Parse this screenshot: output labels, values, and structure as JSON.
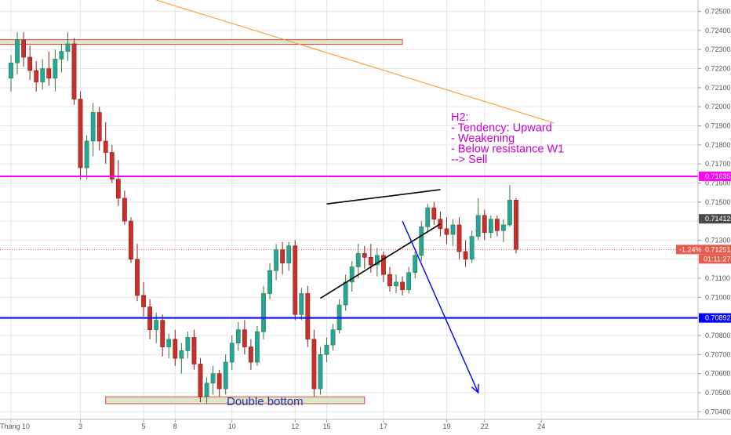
{
  "chart_data": {
    "type": "candlestick",
    "title": "",
    "ylim": [
      0.7036,
      0.7256
    ],
    "x_range": [
      0,
      86
    ],
    "price_ticks": [
      "0.72500",
      "0.72400",
      "0.72300",
      "0.72200",
      "0.72100",
      "0.72000",
      "0.71900",
      "0.71800",
      "0.71700",
      "0.71600",
      "0.71500",
      "0.71400",
      "0.71300",
      "0.71200",
      "0.71100",
      "0.71000",
      "0.70900",
      "0.70800",
      "0.70700",
      "0.70600",
      "0.70500",
      "0.70400"
    ],
    "date_ticks": [
      {
        "label": "Tháng 10",
        "i": 0
      },
      {
        "label": "3",
        "i": 11
      },
      {
        "label": "5",
        "i": 21
      },
      {
        "label": "8",
        "i": 26
      },
      {
        "label": "10",
        "i": 35
      },
      {
        "label": "12",
        "i": 45
      },
      {
        "label": "15",
        "i": 50
      },
      {
        "label": "17",
        "i": 59
      },
      {
        "label": "19",
        "i": 69
      },
      {
        "label": "22",
        "i": 75
      },
      {
        "label": "24",
        "i": 84
      }
    ],
    "levels": [
      {
        "name": "resistance",
        "price": 0.71635,
        "label": "0.71635",
        "color": "#ff00ff"
      },
      {
        "name": "support",
        "price": 0.70892,
        "label": "0.70892",
        "color": "#0000ff"
      }
    ],
    "current_price": {
      "value": 0.71251,
      "label": "0.71251",
      "change": "-1.24%",
      "countdown": "01:11:27",
      "color": "#e55b4d"
    },
    "high_marker": {
      "value": 0.71412,
      "label": "0.71412"
    },
    "zones": [
      {
        "name": "resistance-zone",
        "i0": -2,
        "i1": 62,
        "p_low": 0.72328,
        "p_high": 0.72352
      },
      {
        "name": "support-zone",
        "i0": 15,
        "i1": 56,
        "p_low": 0.70442,
        "p_high": 0.70478
      }
    ],
    "trendlines": [
      {
        "name": "orange-trendline",
        "i0": 23,
        "p0": 0.7256,
        "i1": 86,
        "p1": 0.71915,
        "color": "#ff9a2e"
      },
      {
        "name": "wedge-upper-line",
        "i0": 50,
        "p0": 0.7149,
        "i1": 68,
        "p1": 0.71565,
        "color": "#000000"
      },
      {
        "name": "wedge-lower-line",
        "i0": 49,
        "p0": 0.70995,
        "i1": 68,
        "p1": 0.71385,
        "color": "#000000"
      }
    ],
    "forecast_arrow": {
      "i0": 62,
      "p0": 0.714,
      "i1": 74,
      "p1": 0.705,
      "color": "#0000ff"
    },
    "annotation": {
      "lines": [
        "H2:",
        "- Tendency: Upward",
        "- Weakening",
        "- Below resistance W1",
        "--> Sell"
      ],
      "color": "#cc00cc"
    },
    "zone_label": "Double bottom",
    "colors": {
      "up": "#26a69a",
      "down": "#c9302c",
      "up_wick": "#2f7a3c",
      "down_wick": "#8a1d1b",
      "grid": "#e6e6e6"
    },
    "candles": [
      {
        "i": 0,
        "o": 0.7215,
        "h": 0.7227,
        "l": 0.7208,
        "c": 0.7223
      },
      {
        "i": 1,
        "o": 0.7223,
        "h": 0.7239,
        "l": 0.7217,
        "c": 0.7235
      },
      {
        "i": 2,
        "o": 0.7235,
        "h": 0.7239,
        "l": 0.7221,
        "c": 0.7226
      },
      {
        "i": 3,
        "o": 0.7226,
        "h": 0.7232,
        "l": 0.7214,
        "c": 0.7219
      },
      {
        "i": 4,
        "o": 0.7219,
        "h": 0.7224,
        "l": 0.7208,
        "c": 0.7213
      },
      {
        "i": 5,
        "o": 0.7213,
        "h": 0.7225,
        "l": 0.7209,
        "c": 0.722
      },
      {
        "i": 6,
        "o": 0.722,
        "h": 0.7229,
        "l": 0.7211,
        "c": 0.7215
      },
      {
        "i": 7,
        "o": 0.7215,
        "h": 0.723,
        "l": 0.7208,
        "c": 0.7225
      },
      {
        "i": 8,
        "o": 0.7225,
        "h": 0.7233,
        "l": 0.7218,
        "c": 0.7229
      },
      {
        "i": 9,
        "o": 0.7229,
        "h": 0.7239,
        "l": 0.7224,
        "c": 0.7233
      },
      {
        "i": 10,
        "o": 0.7233,
        "h": 0.7236,
        "l": 0.7201,
        "c": 0.7204
      },
      {
        "i": 11,
        "o": 0.7204,
        "h": 0.7208,
        "l": 0.7162,
        "c": 0.7168
      },
      {
        "i": 12,
        "o": 0.7168,
        "h": 0.7185,
        "l": 0.7162,
        "c": 0.7182
      },
      {
        "i": 13,
        "o": 0.7182,
        "h": 0.7202,
        "l": 0.7174,
        "c": 0.7197
      },
      {
        "i": 14,
        "o": 0.7197,
        "h": 0.72,
        "l": 0.7177,
        "c": 0.7182
      },
      {
        "i": 15,
        "o": 0.7182,
        "h": 0.7192,
        "l": 0.717,
        "c": 0.7176
      },
      {
        "i": 16,
        "o": 0.7176,
        "h": 0.718,
        "l": 0.716,
        "c": 0.7162
      },
      {
        "i": 17,
        "o": 0.7162,
        "h": 0.7172,
        "l": 0.7148,
        "c": 0.7152
      },
      {
        "i": 18,
        "o": 0.7152,
        "h": 0.7156,
        "l": 0.7138,
        "c": 0.714
      },
      {
        "i": 19,
        "o": 0.714,
        "h": 0.7142,
        "l": 0.7118,
        "c": 0.712
      },
      {
        "i": 20,
        "o": 0.712,
        "h": 0.7128,
        "l": 0.7098,
        "c": 0.7101
      },
      {
        "i": 21,
        "o": 0.7101,
        "h": 0.7108,
        "l": 0.709,
        "c": 0.7095
      },
      {
        "i": 22,
        "o": 0.7095,
        "h": 0.7099,
        "l": 0.7078,
        "c": 0.7083
      },
      {
        "i": 23,
        "o": 0.7083,
        "h": 0.7092,
        "l": 0.7076,
        "c": 0.7088
      },
      {
        "i": 24,
        "o": 0.7088,
        "h": 0.7091,
        "l": 0.7069,
        "c": 0.7074
      },
      {
        "i": 25,
        "o": 0.7074,
        "h": 0.7081,
        "l": 0.7068,
        "c": 0.7078
      },
      {
        "i": 26,
        "o": 0.7078,
        "h": 0.7083,
        "l": 0.7064,
        "c": 0.7068
      },
      {
        "i": 27,
        "o": 0.7068,
        "h": 0.7076,
        "l": 0.706,
        "c": 0.7072
      },
      {
        "i": 28,
        "o": 0.7072,
        "h": 0.7082,
        "l": 0.7068,
        "c": 0.7079
      },
      {
        "i": 29,
        "o": 0.7079,
        "h": 0.7083,
        "l": 0.7062,
        "c": 0.7065
      },
      {
        "i": 30,
        "o": 0.7065,
        "h": 0.7068,
        "l": 0.7045,
        "c": 0.7048
      },
      {
        "i": 31,
        "o": 0.7048,
        "h": 0.7058,
        "l": 0.7044,
        "c": 0.7055
      },
      {
        "i": 32,
        "o": 0.7055,
        "h": 0.7064,
        "l": 0.7049,
        "c": 0.706
      },
      {
        "i": 33,
        "o": 0.706,
        "h": 0.7062,
        "l": 0.7048,
        "c": 0.7052
      },
      {
        "i": 34,
        "o": 0.7052,
        "h": 0.707,
        "l": 0.7049,
        "c": 0.7066
      },
      {
        "i": 35,
        "o": 0.7066,
        "h": 0.708,
        "l": 0.7062,
        "c": 0.7076
      },
      {
        "i": 36,
        "o": 0.7076,
        "h": 0.7087,
        "l": 0.7072,
        "c": 0.7083
      },
      {
        "i": 37,
        "o": 0.7083,
        "h": 0.7088,
        "l": 0.707,
        "c": 0.7074
      },
      {
        "i": 38,
        "o": 0.7074,
        "h": 0.7078,
        "l": 0.7062,
        "c": 0.7066
      },
      {
        "i": 39,
        "o": 0.7066,
        "h": 0.7085,
        "l": 0.7064,
        "c": 0.7082
      },
      {
        "i": 40,
        "o": 0.7082,
        "h": 0.7106,
        "l": 0.7078,
        "c": 0.7102
      },
      {
        "i": 41,
        "o": 0.7102,
        "h": 0.7118,
        "l": 0.7099,
        "c": 0.7114
      },
      {
        "i": 42,
        "o": 0.7114,
        "h": 0.7128,
        "l": 0.7109,
        "c": 0.7125
      },
      {
        "i": 43,
        "o": 0.7125,
        "h": 0.7129,
        "l": 0.7112,
        "c": 0.7118
      },
      {
        "i": 44,
        "o": 0.7118,
        "h": 0.7129,
        "l": 0.7114,
        "c": 0.7127
      },
      {
        "i": 45,
        "o": 0.7127,
        "h": 0.713,
        "l": 0.7088,
        "c": 0.7091
      },
      {
        "i": 46,
        "o": 0.7091,
        "h": 0.7105,
        "l": 0.7088,
        "c": 0.7102
      },
      {
        "i": 47,
        "o": 0.7102,
        "h": 0.7106,
        "l": 0.7074,
        "c": 0.7078
      },
      {
        "i": 48,
        "o": 0.7078,
        "h": 0.7083,
        "l": 0.7048,
        "c": 0.7052
      },
      {
        "i": 49,
        "o": 0.7052,
        "h": 0.7074,
        "l": 0.7049,
        "c": 0.707
      },
      {
        "i": 50,
        "o": 0.707,
        "h": 0.7079,
        "l": 0.7066,
        "c": 0.7075
      },
      {
        "i": 51,
        "o": 0.7075,
        "h": 0.7086,
        "l": 0.7072,
        "c": 0.7083
      },
      {
        "i": 52,
        "o": 0.7083,
        "h": 0.7099,
        "l": 0.7081,
        "c": 0.7096
      },
      {
        "i": 53,
        "o": 0.7096,
        "h": 0.7112,
        "l": 0.7093,
        "c": 0.7108
      },
      {
        "i": 54,
        "o": 0.7108,
        "h": 0.7119,
        "l": 0.7103,
        "c": 0.7116
      },
      {
        "i": 55,
        "o": 0.7116,
        "h": 0.7128,
        "l": 0.711,
        "c": 0.7123
      },
      {
        "i": 56,
        "o": 0.7123,
        "h": 0.7127,
        "l": 0.7115,
        "c": 0.7121
      },
      {
        "i": 57,
        "o": 0.7121,
        "h": 0.7128,
        "l": 0.7113,
        "c": 0.7117
      },
      {
        "i": 58,
        "o": 0.7117,
        "h": 0.7126,
        "l": 0.7111,
        "c": 0.7122
      },
      {
        "i": 59,
        "o": 0.7122,
        "h": 0.7124,
        "l": 0.7108,
        "c": 0.7112
      },
      {
        "i": 60,
        "o": 0.7112,
        "h": 0.7116,
        "l": 0.7103,
        "c": 0.7106
      },
      {
        "i": 61,
        "o": 0.7106,
        "h": 0.7112,
        "l": 0.7102,
        "c": 0.7108
      },
      {
        "i": 62,
        "o": 0.7108,
        "h": 0.7111,
        "l": 0.7101,
        "c": 0.7104
      },
      {
        "i": 63,
        "o": 0.7104,
        "h": 0.7116,
        "l": 0.7102,
        "c": 0.7113
      },
      {
        "i": 64,
        "o": 0.7113,
        "h": 0.7124,
        "l": 0.711,
        "c": 0.7122
      },
      {
        "i": 65,
        "o": 0.7122,
        "h": 0.714,
        "l": 0.7119,
        "c": 0.7137
      },
      {
        "i": 66,
        "o": 0.7137,
        "h": 0.7149,
        "l": 0.7134,
        "c": 0.7147
      },
      {
        "i": 67,
        "o": 0.7147,
        "h": 0.715,
        "l": 0.7138,
        "c": 0.7141
      },
      {
        "i": 68,
        "o": 0.7141,
        "h": 0.7145,
        "l": 0.7132,
        "c": 0.7136
      },
      {
        "i": 69,
        "o": 0.7136,
        "h": 0.7142,
        "l": 0.7128,
        "c": 0.7133
      },
      {
        "i": 70,
        "o": 0.7133,
        "h": 0.7141,
        "l": 0.7127,
        "c": 0.7138
      },
      {
        "i": 71,
        "o": 0.7138,
        "h": 0.7142,
        "l": 0.712,
        "c": 0.7124
      },
      {
        "i": 72,
        "o": 0.7124,
        "h": 0.713,
        "l": 0.7116,
        "c": 0.712
      },
      {
        "i": 73,
        "o": 0.712,
        "h": 0.7135,
        "l": 0.7118,
        "c": 0.7132
      },
      {
        "i": 74,
        "o": 0.7132,
        "h": 0.7152,
        "l": 0.713,
        "c": 0.7143
      },
      {
        "i": 75,
        "o": 0.7143,
        "h": 0.7146,
        "l": 0.713,
        "c": 0.7134
      },
      {
        "i": 76,
        "o": 0.7134,
        "h": 0.7143,
        "l": 0.7131,
        "c": 0.7141
      },
      {
        "i": 77,
        "o": 0.7141,
        "h": 0.7143,
        "l": 0.7132,
        "c": 0.7135
      },
      {
        "i": 78,
        "o": 0.7135,
        "h": 0.7141,
        "l": 0.7129,
        "c": 0.7138
      },
      {
        "i": 79,
        "o": 0.7138,
        "h": 0.7159,
        "l": 0.7137,
        "c": 0.7151
      },
      {
        "i": 80,
        "o": 0.7151,
        "h": 0.7152,
        "l": 0.7123,
        "c": 0.71251
      }
    ]
  }
}
